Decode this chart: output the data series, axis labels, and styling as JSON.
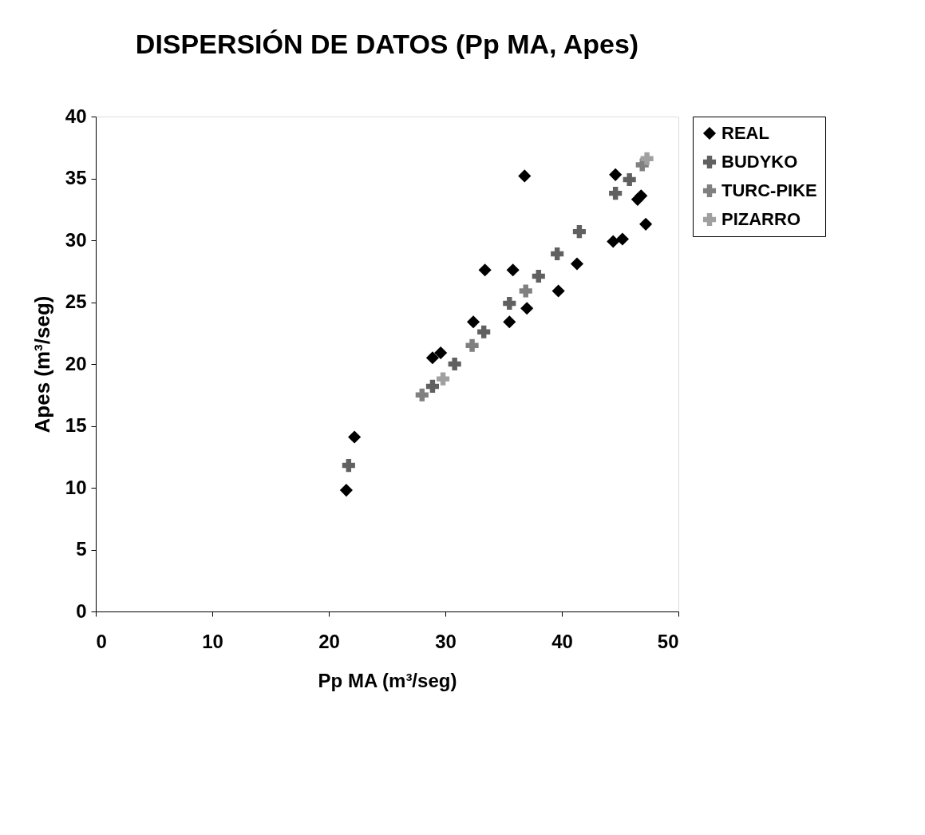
{
  "chart_data": {
    "type": "scatter",
    "title": "DISPERSIÓN DE DATOS (Pp MA, Apes)",
    "xlabel": "Pp MA (m³/seg)",
    "ylabel": "Apes (m³/seg)",
    "xlim": [
      0,
      50
    ],
    "xticks": [
      0,
      10,
      20,
      30,
      40,
      50
    ],
    "ylim": [
      0,
      40
    ],
    "yticks": [
      0,
      5,
      10,
      15,
      20,
      25,
      30,
      35,
      40
    ],
    "grid": false,
    "legend": "right",
    "series": [
      {
        "name": "REAL",
        "color": "#000000",
        "marker": "diamond",
        "x": [
          21.5,
          22.2,
          28.9,
          29.6,
          32.4,
          33.4,
          35.5,
          35.8,
          36.8,
          37.0,
          39.7,
          41.3,
          44.4,
          44.6,
          45.2,
          46.5,
          46.8,
          47.2
        ],
        "values": [
          9.8,
          14.1,
          20.5,
          20.9,
          23.4,
          27.6,
          23.4,
          27.6,
          35.2,
          24.5,
          25.9,
          28.1,
          29.9,
          35.3,
          30.1,
          33.3,
          33.6,
          31.3
        ]
      },
      {
        "name": "BUDYKO",
        "color": "#606060",
        "marker": "cross",
        "x": [
          21.7,
          28.9,
          30.8,
          33.3,
          35.5,
          38.0,
          39.6,
          41.5,
          44.6,
          45.8
        ],
        "values": [
          11.8,
          18.2,
          20.0,
          22.6,
          24.9,
          27.1,
          28.9,
          30.7,
          33.8,
          34.9
        ]
      },
      {
        "name": "TURC-PIKE",
        "color": "#808080",
        "marker": "cross",
        "x": [
          28.0,
          32.3,
          36.9,
          46.9
        ],
        "values": [
          17.5,
          21.5,
          25.9,
          36.1
        ]
      },
      {
        "name": "PIZARRO",
        "color": "#a0a0a0",
        "marker": "cross",
        "x": [
          29.8,
          47.3
        ],
        "values": [
          18.8,
          36.6
        ]
      }
    ]
  }
}
